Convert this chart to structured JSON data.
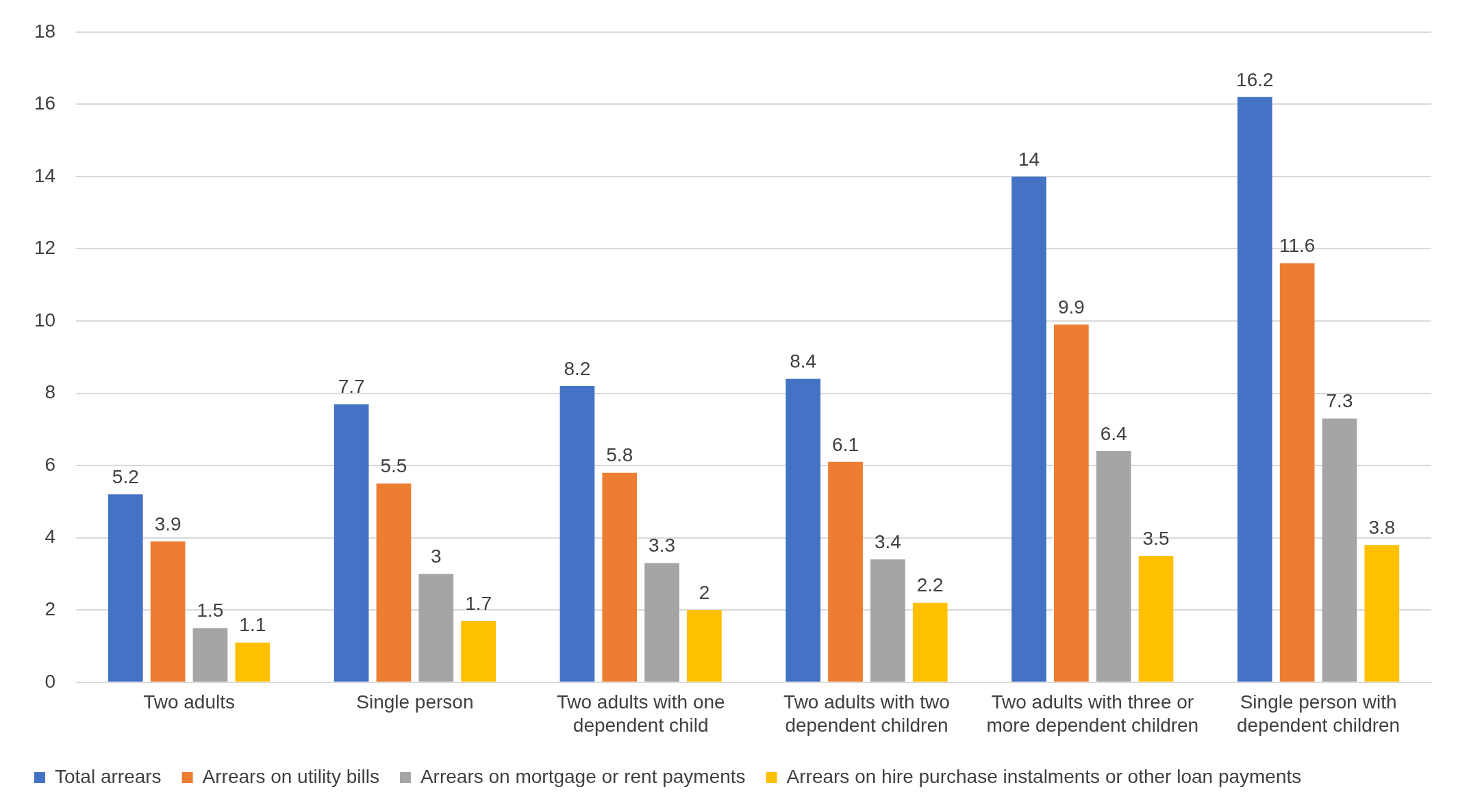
{
  "chart_data": {
    "type": "bar",
    "categories": [
      "Two adults",
      "Single person",
      "Two adults with one dependent child",
      "Two adults with two dependent children",
      "Two adults with three or more dependent children",
      "Single person with dependent children"
    ],
    "series": [
      {
        "name": "Total arrears",
        "color": "#4472c4",
        "values": [
          5.2,
          7.7,
          8.2,
          8.4,
          14,
          16.2
        ]
      },
      {
        "name": "Arrears on utility bills",
        "color": "#ed7d31",
        "values": [
          3.9,
          5.5,
          5.8,
          6.1,
          9.9,
          11.6
        ]
      },
      {
        "name": "Arrears on mortgage or rent payments",
        "color": "#a5a5a5",
        "values": [
          1.5,
          3,
          3.3,
          3.4,
          6.4,
          7.3
        ]
      },
      {
        "name": "Arrears on hire purchase instalments or other loan payments",
        "color": "#ffc000",
        "values": [
          1.1,
          1.7,
          2,
          2.2,
          3.5,
          3.8
        ]
      }
    ],
    "ylim": [
      0,
      18
    ],
    "yticks": [
      0,
      2,
      4,
      6,
      8,
      10,
      12,
      14,
      16,
      18
    ],
    "grid": "y",
    "legend": "bottom",
    "data_labels": true
  }
}
